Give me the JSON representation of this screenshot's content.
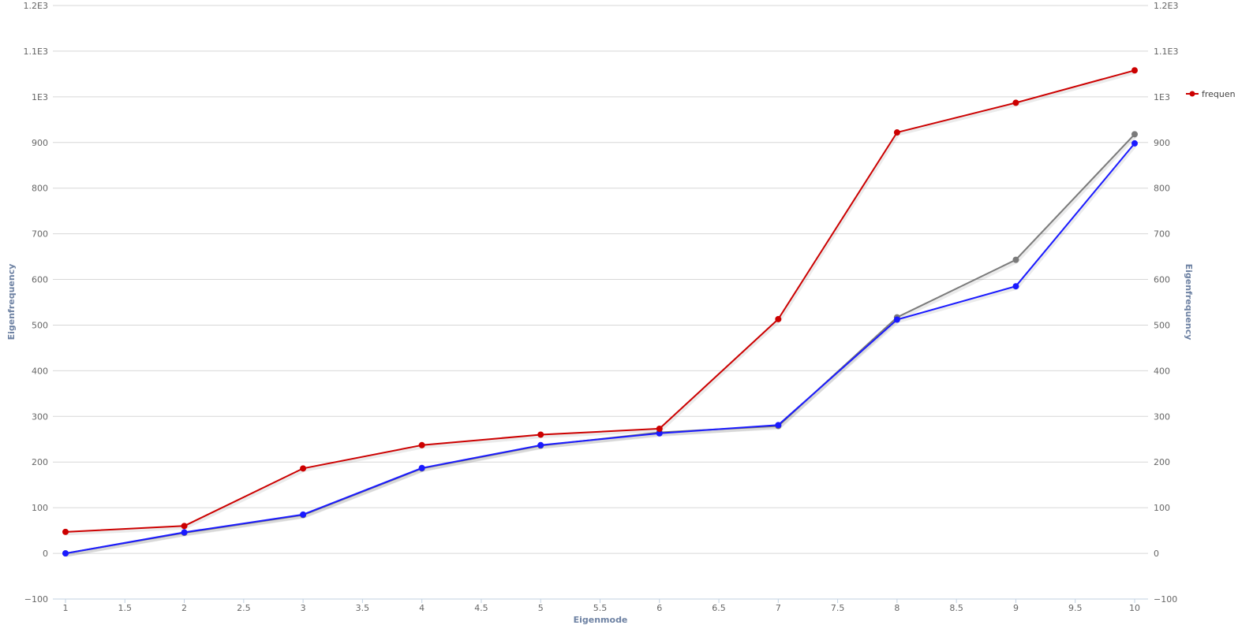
{
  "chart_data": {
    "type": "line",
    "xlabel": "Eigenmode",
    "ylabel": "Eigenfrequency",
    "ylabel_right": "Eigenfrequency",
    "xlim": [
      1,
      10
    ],
    "ylim": [
      -100,
      1200
    ],
    "x_ticks": [
      1,
      1.5,
      2,
      2.5,
      3,
      3.5,
      4,
      4.5,
      5,
      5.5,
      6,
      6.5,
      7,
      7.5,
      8,
      8.5,
      9,
      9.5,
      10
    ],
    "x_tick_labels": [
      "1",
      "1.5",
      "2",
      "2.5",
      "3",
      "3.5",
      "4",
      "4.5",
      "5",
      "5.5",
      "6",
      "6.5",
      "7",
      "7.5",
      "8",
      "8.5",
      "9",
      "9.5",
      "10"
    ],
    "y_ticks": [
      -100,
      0,
      100,
      200,
      300,
      400,
      500,
      600,
      700,
      800,
      900,
      1000,
      1100,
      1200
    ],
    "y_tick_labels": [
      "−100",
      "0",
      "100",
      "200",
      "300",
      "400",
      "500",
      "600",
      "700",
      "800",
      "900",
      "1E3",
      "1.1E3",
      "1.2E3"
    ],
    "grid": true,
    "legend_position": "right",
    "series": [
      {
        "name": "frequen",
        "color": "#cc0000",
        "x": [
          1,
          2,
          3,
          4,
          5,
          6,
          7,
          8,
          9,
          10
        ],
        "values": [
          47,
          60,
          186,
          237,
          260,
          273,
          513,
          922,
          987,
          1058
        ]
      },
      {
        "color": "#1a1aff",
        "x": [
          1,
          2,
          3,
          4,
          5,
          6,
          7,
          8,
          9,
          10
        ],
        "values": [
          0,
          46,
          85,
          187,
          237,
          263,
          281,
          512,
          585,
          898
        ]
      },
      {
        "color": "#7a7a7a",
        "x": [
          1,
          2,
          3,
          4,
          5,
          6,
          7,
          8,
          9,
          10
        ],
        "values": [
          0,
          45,
          84,
          186,
          236,
          265,
          279,
          517,
          643,
          918
        ]
      }
    ]
  }
}
